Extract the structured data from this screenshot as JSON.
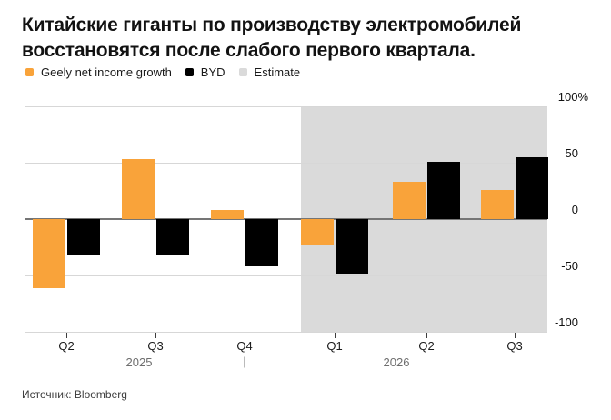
{
  "title": {
    "line1": "Китайские гиганты по производству электромобилей",
    "line2": "восстановятся после слабого первого квартала."
  },
  "legend": {
    "items": [
      {
        "label": "Geely net income growth",
        "color": "#F9A33A"
      },
      {
        "label": "BYD",
        "color": "#000000"
      },
      {
        "label": "Estimate",
        "color": "#DADADA"
      }
    ]
  },
  "source": "Источник: Bloomberg",
  "chart_data": {
    "type": "bar",
    "title": "Китайские гиганты по производству электромобилей восстановятся после слабого первого квартала.",
    "categories": [
      "Q2 2025",
      "Q3 2025",
      "Q4 2025",
      "Q1 2026",
      "Q2 2026",
      "Q3 2026"
    ],
    "quarter_labels": [
      "Q2",
      "Q3",
      "Q4",
      "Q1",
      "Q2",
      "Q3"
    ],
    "year_groups": [
      {
        "label": "2025",
        "quarter_indices": [
          0,
          1,
          2
        ]
      },
      {
        "label": "2026",
        "quarter_indices": [
          3,
          4,
          5
        ]
      }
    ],
    "year_separator": "|",
    "series": [
      {
        "name": "Geely net income growth",
        "color": "#F9A33A",
        "values": [
          -61,
          53,
          8,
          -23,
          33,
          26
        ]
      },
      {
        "name": "BYD",
        "color": "#000000",
        "values": [
          -32,
          -32,
          -42,
          -48,
          51,
          55
        ]
      }
    ],
    "estimate": {
      "label": "Estimate",
      "color": "#DADADA",
      "applies_to_categories": [
        "Q1 2026",
        "Q2 2026",
        "Q3 2026"
      ]
    },
    "unit": "%",
    "ylim": [
      -100,
      100
    ],
    "yticks": [
      100,
      50,
      0,
      -50,
      -100
    ],
    "ytick_labels": [
      "100%",
      "50",
      "0",
      "-50",
      "-100"
    ],
    "grid": true,
    "legend_position": "top",
    "source": "Источник: Bloomberg"
  }
}
